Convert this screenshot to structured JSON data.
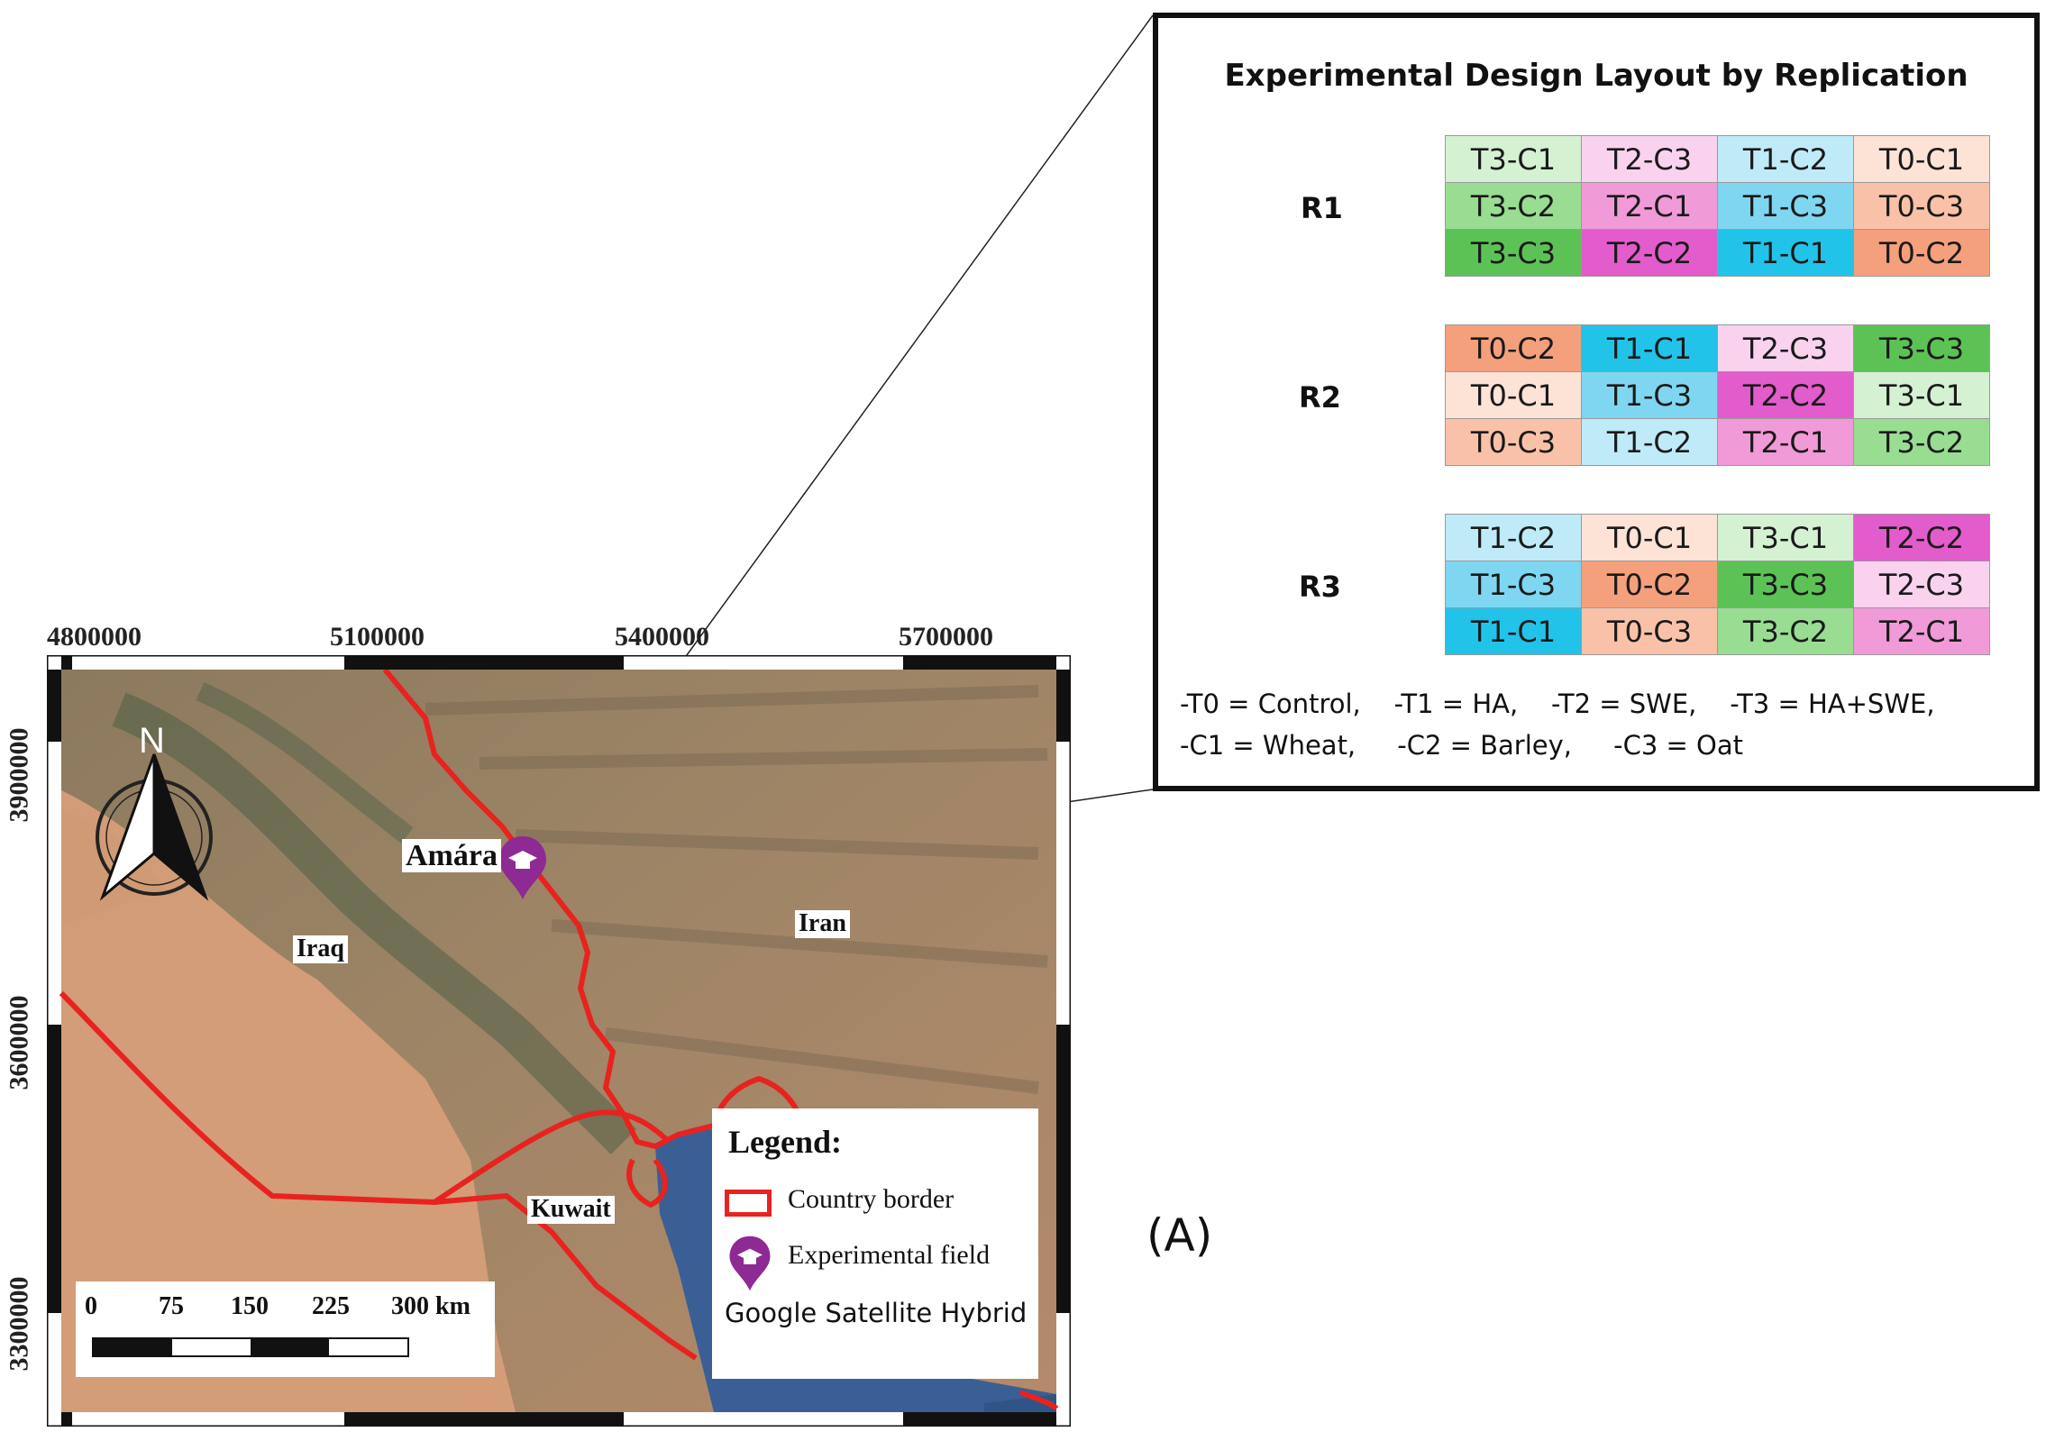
{
  "map": {
    "x_ticks": [
      "4800000",
      "5100000",
      "5400000",
      "5700000"
    ],
    "y_ticks": [
      "3900000",
      "3600000",
      "3300000"
    ],
    "north_label": "N",
    "place_labels": {
      "amara": "Amára",
      "iraq": "Iraq",
      "iran": "Iran",
      "kuwait": "Kuwait"
    },
    "legend": {
      "title": "Legend:",
      "country_border": "Country border",
      "experimental_field": "Experimental field",
      "basemap": "Google Satellite Hybrid"
    },
    "scale": {
      "labels": [
        "0",
        "75",
        "150",
        "225",
        "300 km"
      ]
    },
    "colors": {
      "border": "#e8231f",
      "marker": "#8e2a93",
      "water": "#3a5f94",
      "desert": "#d8a07a"
    }
  },
  "design": {
    "title": "Experimental Design Layout by Replication",
    "replications": [
      {
        "label": "R1",
        "rows": [
          [
            "T3-C1",
            "T2-C3",
            "T1-C2",
            "T0-C1"
          ],
          [
            "T3-C2",
            "T2-C1",
            "T1-C3",
            "T0-C3"
          ],
          [
            "T3-C3",
            "T2-C2",
            "T1-C1",
            "T0-C2"
          ]
        ]
      },
      {
        "label": "R2",
        "rows": [
          [
            "T0-C2",
            "T1-C1",
            "T2-C3",
            "T3-C3"
          ],
          [
            "T0-C1",
            "T1-C3",
            "T2-C2",
            "T3-C1"
          ],
          [
            "T0-C3",
            "T1-C2",
            "T2-C1",
            "T3-C2"
          ]
        ]
      },
      {
        "label": "R3",
        "rows": [
          [
            "T1-C2",
            "T0-C1",
            "T3-C1",
            "T2-C2"
          ],
          [
            "T1-C3",
            "T0-C2",
            "T3-C3",
            "T2-C3"
          ],
          [
            "T1-C1",
            "T0-C3",
            "T3-C2",
            "T2-C1"
          ]
        ]
      }
    ],
    "key_line1": "-T0 = Control,    -T1 = HA,    -T2 = SWE,    -T3 = HA+SWE,",
    "key_line2": "-C1 = Wheat,     -C2 = Barley,     -C3 = Oat",
    "cell_colors": {
      "T0-C1": "#fde2d6",
      "T0-C2": "#f5a07c",
      "T0-C3": "#f9c2a8",
      "T1-C1": "#22c3e8",
      "T1-C2": "#bfeaf7",
      "T1-C3": "#7fd6f0",
      "T2-C1": "#f19ad8",
      "T2-C2": "#e25ccb",
      "T2-C3": "#f9d2ee",
      "T3-C1": "#d4f1d2",
      "T3-C2": "#98dd92",
      "T3-C3": "#5cc256"
    }
  },
  "panel_label": "(A)"
}
